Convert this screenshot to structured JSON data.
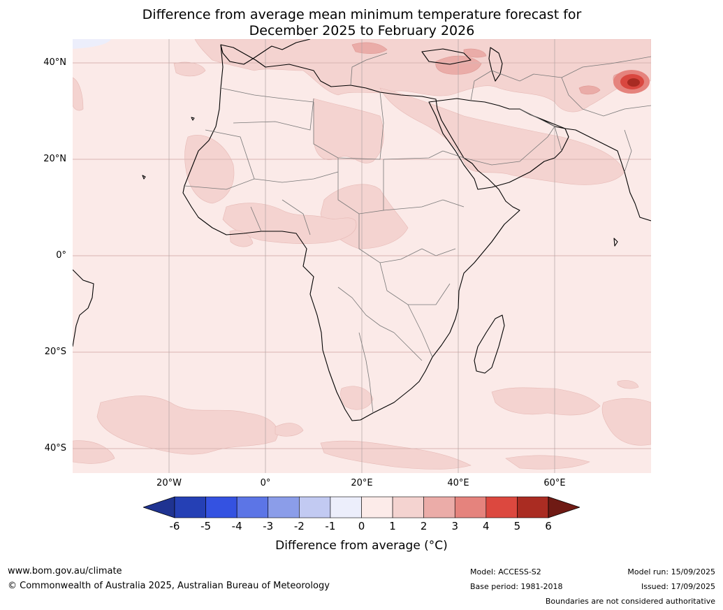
{
  "header": {
    "title_line1": "Difference from average mean minimum temperature forecast for",
    "title_line2": "December 2025 to February 2026"
  },
  "map": {
    "region": "Africa and Middle East",
    "lat_labels": [
      "40°N",
      "20°N",
      "0°",
      "20°S",
      "40°S"
    ],
    "lon_labels": [
      "20°W",
      "0°",
      "20°E",
      "40°E",
      "60°E"
    ],
    "background_anomaly_color": "#fbeae8",
    "anomaly_colors": {
      "0_to_1": "#fbeae8",
      "1_to_2": "#f4d3d0",
      "2_to_3": "#eaaca8",
      "3_to_4": "#e5837d",
      "4_to_5": "#d9473f",
      "5_to_6": "#a82b22"
    }
  },
  "colorbar": {
    "ticks": [
      "-6",
      "-5",
      "-4",
      "-3",
      "-2",
      "-1",
      "0",
      "1",
      "2",
      "3",
      "4",
      "5",
      "6"
    ],
    "colors": [
      "#1f3391",
      "#2540b5",
      "#3452e1",
      "#5c75e6",
      "#8b9de9",
      "#c2caf2",
      "#eceefb",
      "#fcebe9",
      "#f4d3d0",
      "#ebaca8",
      "#e5837d",
      "#dc483f",
      "#aa2c22",
      "#6f1a14"
    ],
    "title": "Difference from average (°C)"
  },
  "footer": {
    "website": "www.bom.gov.au/climate",
    "copyright": "© Commonwealth of Australia 2025, Australian Bureau of Meteorology",
    "model": "Model: ACCESS-S2",
    "base_period": "Base period: 1981-2018",
    "model_run": "Model run: 15/09/2025",
    "issued": "Issued: 17/09/2025",
    "disclaimer": "Boundaries are not considered authoritative"
  }
}
